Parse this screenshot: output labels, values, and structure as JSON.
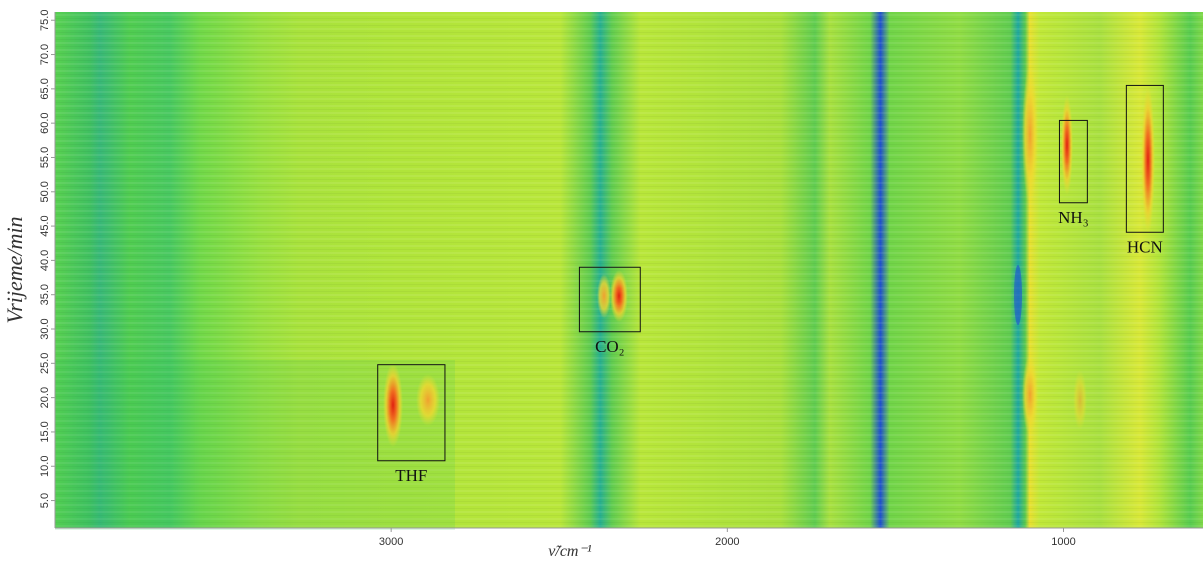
{
  "chart_data": {
    "type": "heatmap",
    "y_label": "Vrijeme/min",
    "x_label": "ν̃/cm⁻¹",
    "xlim": [
      4000,
      585
    ],
    "ylim": [
      1,
      76.2
    ],
    "xticks": [
      3000,
      2000,
      1000
    ],
    "yticks": [
      {
        "value": 5,
        "label": "5.0"
      },
      {
        "value": 10,
        "label": "10.0"
      },
      {
        "value": 15,
        "label": "15.0"
      },
      {
        "value": 20,
        "label": "20.0"
      },
      {
        "value": 25,
        "label": "25.0"
      },
      {
        "value": 30,
        "label": "30.0"
      },
      {
        "value": 35,
        "label": "35.0"
      },
      {
        "value": 40,
        "label": "40.0"
      },
      {
        "value": 45,
        "label": "45.0"
      },
      {
        "value": 50,
        "label": "50.0"
      },
      {
        "value": 55,
        "label": "55.0"
      },
      {
        "value": 60,
        "label": "60.0"
      },
      {
        "value": 65,
        "label": "65.0"
      },
      {
        "value": 70,
        "label": "70.0"
      },
      {
        "value": 75,
        "label": "75.0"
      }
    ],
    "annotations": [
      {
        "label": "THF",
        "x": [
          3040,
          2840
        ],
        "y": [
          10.8,
          24.8
        ]
      },
      {
        "label": "CO₂",
        "x": [
          2440,
          2259
        ],
        "y": [
          29.6,
          39
        ]
      },
      {
        "label": "NH₃",
        "x": [
          1012,
          929
        ],
        "y": [
          48.4,
          60.4
        ]
      },
      {
        "label": "HCN",
        "x": [
          813,
          703
        ],
        "y": [
          44.1,
          65.5
        ]
      }
    ]
  }
}
